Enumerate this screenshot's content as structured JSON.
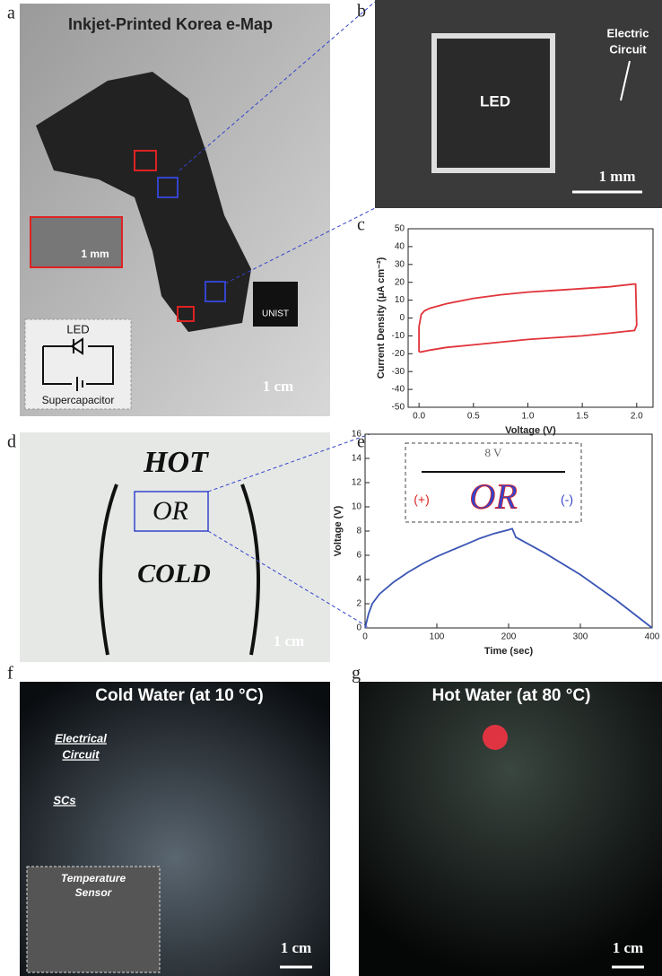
{
  "panels": {
    "a": {
      "label": "a",
      "title": "Inkjet-Printed Korea e-Map",
      "inset_scale": "1 mm",
      "led": "LED",
      "supercapacitor": "Supercapacitor",
      "logo": "UNIST",
      "scale": "1 cm"
    },
    "b": {
      "label": "b",
      "led": "LED",
      "circuit": [
        "Electric",
        "Circuit"
      ],
      "scale": "1 mm"
    },
    "c": {
      "label": "c"
    },
    "d": {
      "label": "d",
      "words": [
        "HOT",
        "OR",
        "COLD"
      ],
      "scale": "1 cm"
    },
    "e": {
      "label": "e",
      "inset_voltage": "8 V",
      "plus": "(+)",
      "minus": "(-)",
      "inset_word": "OR"
    },
    "f": {
      "label": "f",
      "title": "Cold Water (at 10 °C)",
      "circuit": [
        "Electrical",
        "Circuit"
      ],
      "scs": "SCs",
      "sensor": [
        "Temperature",
        "Sensor"
      ],
      "scale": "1 cm"
    },
    "g": {
      "label": "g",
      "title": "Hot Water (at 80 °C)",
      "scale": "1 cm"
    }
  },
  "chart_data": [
    {
      "type": "line",
      "xlabel": "Voltage (V)",
      "ylabel": "Current Density (μA cm⁻²)",
      "x": [
        0,
        0,
        0.02,
        0.05,
        0.1,
        0.25,
        0.5,
        0.75,
        1.0,
        1.25,
        1.5,
        1.75,
        1.97,
        1.99,
        2.0,
        1.98,
        1.9,
        1.75,
        1.5,
        1.25,
        1.0,
        0.75,
        0.5,
        0.25,
        0.1,
        0.02,
        0
      ],
      "series": [
        {
          "color": "#e0343a",
          "values": [
            -19,
            -5,
            2,
            4,
            5.5,
            8,
            11,
            13,
            14.5,
            15.5,
            16.5,
            17.5,
            19,
            19,
            -4,
            -7,
            -7.5,
            -8.5,
            -10,
            -11,
            -12,
            -13.5,
            -15,
            -16.5,
            -18,
            -19,
            -19
          ]
        }
      ],
      "xlim": [
        -0.1,
        2.15
      ],
      "ylim": [
        -50,
        50
      ],
      "xticks": [
        {
          "value": 0,
          "label": "0.0"
        },
        {
          "value": 0.5,
          "label": "0.5"
        },
        {
          "value": 1,
          "label": "1.0"
        },
        {
          "value": 1.5,
          "label": "1.5"
        },
        {
          "value": 2,
          "label": "2.0"
        }
      ],
      "yticks": [
        -50,
        -40,
        -30,
        -20,
        -10,
        0,
        10,
        20,
        30,
        40,
        50
      ]
    },
    {
      "type": "line",
      "xlabel": "Time (sec)",
      "ylabel": "Voltage (V)",
      "x": [
        0,
        5,
        10,
        20,
        40,
        60,
        80,
        100,
        120,
        140,
        160,
        180,
        200,
        205,
        210,
        250,
        300,
        350,
        400
      ],
      "series": [
        {
          "color": "#3a55b4",
          "values": [
            0,
            1.2,
            2.0,
            2.8,
            3.8,
            4.6,
            5.3,
            5.9,
            6.4,
            6.9,
            7.4,
            7.8,
            8.1,
            8.2,
            7.5,
            6.2,
            4.4,
            2.3,
            0
          ]
        }
      ],
      "xlim": [
        0,
        400
      ],
      "ylim": [
        0,
        16
      ],
      "xticks": [
        0,
        100,
        200,
        300,
        400
      ],
      "yticks": [
        0,
        2,
        4,
        6,
        8,
        10,
        12,
        14,
        16
      ]
    }
  ]
}
